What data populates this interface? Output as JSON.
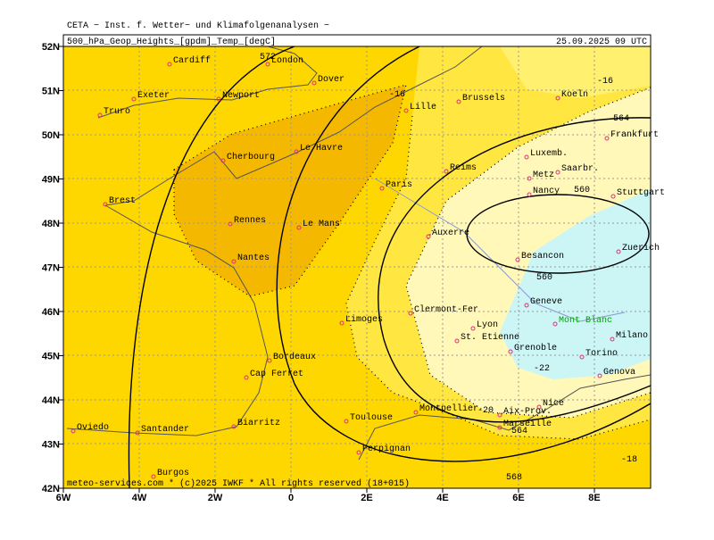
{
  "header": {
    "institute": "CETA − Inst. f. Wetter− und Klimafolgenanalysen −",
    "product": "500_hPa_Geop_Heights_[gpdm]_Temp_[degC]",
    "valid_time": "25.09.2025 09 UTC"
  },
  "axes": {
    "latitudes": [
      "52N",
      "51N",
      "50N",
      "49N",
      "48N",
      "47N",
      "46N",
      "45N",
      "44N",
      "43N",
      "42N"
    ],
    "longitudes": [
      "6W",
      "4W",
      "2W",
      "0",
      "2E",
      "4E",
      "6E",
      "8E"
    ]
  },
  "cities": [
    "Cardiff",
    "London",
    "Dover",
    "Exeter",
    "Truro",
    "Newport",
    "Lille",
    "Brussels",
    "Koeln",
    "Frankfurt",
    "Le Havre",
    "Cherbourg",
    "Reims",
    "Luxemb.",
    "Saarbr.",
    "Metz",
    "Paris",
    "Nancy",
    "Stuttgart",
    "Brest",
    "Rennes",
    "Le Mans",
    "Auxerre",
    "Zuerich",
    "Nantes",
    "Besancon",
    "Geneve",
    "Clermont-Fer",
    "Mont Blanc",
    "Limoges",
    "Lyon",
    "St. Etienne",
    "Milano",
    "Grenoble",
    "Torino",
    "Bordeaux",
    "Cap Ferret",
    "Genova",
    "Nice",
    "Montpellier",
    "Aix-Prov.",
    "Toulouse",
    "Marseille",
    "Biarritz",
    "Santander",
    "Oviedo",
    "Perpignan",
    "Burgos"
  ],
  "contour_labels": [
    "572",
    "564",
    "560",
    "560",
    "564",
    "568",
    "-16",
    "-16",
    "-20",
    "-22",
    "-18"
  ],
  "footer": "meteo-services.com * (c)2025 IWKF * All rights reserved (18+015)"
}
